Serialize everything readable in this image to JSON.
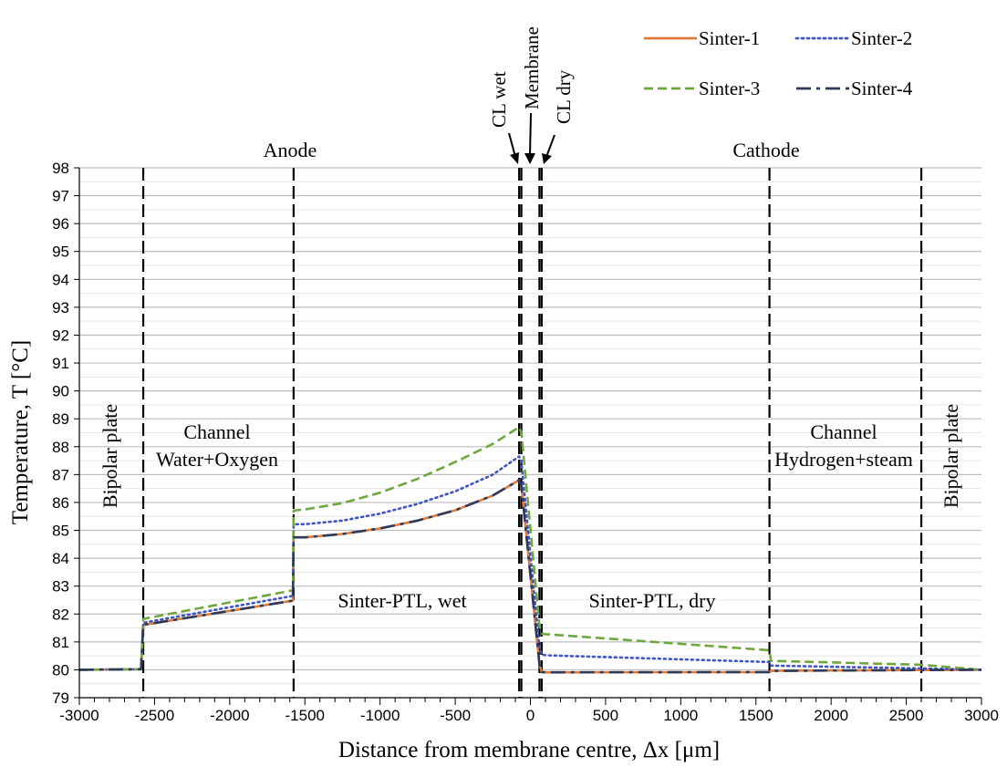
{
  "chart_data": {
    "type": "line",
    "xlabel": "Distance from membrane centre, Δx [μm]",
    "ylabel": "Temperature, T [°C]",
    "xlim": [
      -3000,
      3000
    ],
    "ylim": [
      79,
      98
    ],
    "x_ticks": [
      "-3000",
      "-2500",
      "-2000",
      "-1500",
      "-1000",
      "-500",
      "0",
      "500",
      "1000",
      "1500",
      "2000",
      "2500",
      "3000"
    ],
    "y_ticks": [
      "79",
      "80",
      "81",
      "82",
      "83",
      "84",
      "85",
      "86",
      "87",
      "88",
      "89",
      "90",
      "91",
      "92",
      "93",
      "94",
      "95",
      "96",
      "97",
      "98"
    ],
    "grid": "horizontal",
    "legend_position": "top-right",
    "boundaries": [
      -2575,
      -1575,
      -75,
      -60,
      60,
      75,
      1590,
      2600
    ],
    "region_labels": {
      "anode": "Anode",
      "cathode": "Cathode",
      "bipolar_left": "Bipolar plate",
      "bipolar_right": "Bipolar plate",
      "channel_left_1": "Channel",
      "channel_left_2": "Water+Oxygen",
      "channel_right_1": "Channel",
      "channel_right_2": "Hydrogen+steam",
      "ptl_wet": "Sinter-PTL, wet",
      "ptl_dry": "Sinter-PTL, dry"
    },
    "annotations": {
      "cl_wet": "CL wet",
      "membrane": "Membrane",
      "cl_dry": "CL dry"
    },
    "series": [
      {
        "name": "Sinter-1",
        "color": "#E07B39",
        "style": "solid",
        "x": [
          -3000,
          -2590,
          -2575,
          -2540,
          -1580,
          -1575,
          -1560,
          -1500,
          -1250,
          -1000,
          -750,
          -500,
          -250,
          -75,
          -60,
          60,
          75,
          100,
          1590,
          1600,
          2600,
          3000
        ],
        "y": [
          80.0,
          80.02,
          81.62,
          81.64,
          82.48,
          84.75,
          84.75,
          84.75,
          84.87,
          85.07,
          85.35,
          85.72,
          86.25,
          86.8,
          86.6,
          80.2,
          79.92,
          79.91,
          79.92,
          79.96,
          79.99,
          80.0
        ]
      },
      {
        "name": "Sinter-2",
        "color": "#4054C4",
        "style": "dotted",
        "x": [
          -3000,
          -2590,
          -2575,
          -2540,
          -1580,
          -1575,
          -1560,
          -1500,
          -1250,
          -1000,
          -750,
          -500,
          -250,
          -75,
          -60,
          60,
          75,
          100,
          1590,
          1600,
          2600,
          3000
        ],
        "y": [
          80.0,
          80.02,
          81.68,
          81.72,
          82.65,
          85.2,
          85.22,
          85.22,
          85.35,
          85.6,
          85.95,
          86.4,
          87.0,
          87.65,
          87.45,
          80.8,
          80.55,
          80.52,
          80.28,
          80.15,
          80.05,
          80.0
        ]
      },
      {
        "name": "Sinter-3",
        "color": "#6FA73C",
        "style": "dashed",
        "x": [
          -3000,
          -2590,
          -2575,
          -2540,
          -1580,
          -1575,
          -1560,
          -1500,
          -1250,
          -1000,
          -750,
          -500,
          -250,
          -75,
          -60,
          60,
          75,
          100,
          1590,
          1600,
          2600,
          3000
        ],
        "y": [
          80.0,
          80.02,
          81.82,
          81.86,
          82.85,
          85.7,
          85.72,
          85.75,
          85.98,
          86.35,
          86.85,
          87.45,
          88.1,
          88.7,
          88.5,
          81.6,
          81.3,
          81.28,
          80.7,
          80.32,
          80.18,
          80.0
        ]
      },
      {
        "name": "Sinter-4",
        "color": "#2E3A59",
        "style": "dashdot",
        "x": [
          -3000,
          -2590,
          -2575,
          -2540,
          -1580,
          -1575,
          -1560,
          -1500,
          -1250,
          -1000,
          -750,
          -500,
          -250,
          -75,
          -60,
          60,
          75,
          100,
          1590,
          1600,
          2600,
          3000
        ],
        "y": [
          80.0,
          80.02,
          81.62,
          81.64,
          82.48,
          84.75,
          84.75,
          84.75,
          84.87,
          85.07,
          85.35,
          85.72,
          86.25,
          86.8,
          86.6,
          80.2,
          79.92,
          79.91,
          79.92,
          79.96,
          79.99,
          80.0
        ]
      }
    ]
  }
}
